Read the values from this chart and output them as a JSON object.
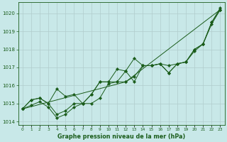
{
  "title": "Graphe pression niveau de la mer (hPa)",
  "xlabel_hours": [
    0,
    1,
    2,
    3,
    4,
    5,
    6,
    7,
    8,
    9,
    10,
    11,
    12,
    13,
    14,
    15,
    16,
    17,
    18,
    19,
    20,
    21,
    22,
    23
  ],
  "ylim": [
    1013.8,
    1020.6
  ],
  "yticks": [
    1014,
    1015,
    1016,
    1017,
    1018,
    1019,
    1020
  ],
  "bg_color": "#c8e8e8",
  "grid_color": "#b0cccc",
  "line_color": "#1a5c1a",
  "series": [
    [
      1014.7,
      1014.9,
      1015.1,
      1014.8,
      1014.2,
      1014.4,
      1014.8,
      1015.0,
      1015.0,
      1015.3,
      1016.1,
      1016.2,
      1016.2,
      1016.5,
      1017.1,
      1017.1,
      1017.2,
      1016.7,
      1017.2,
      1017.3,
      1018.0,
      1018.3,
      1019.4,
      1020.2
    ],
    [
      1014.7,
      1015.2,
      1015.3,
      1015.0,
      1014.4,
      1014.6,
      1015.0,
      1015.0,
      1015.5,
      1016.2,
      1016.2,
      1016.9,
      1016.8,
      1017.5,
      1017.1,
      1017.1,
      1017.2,
      1017.1,
      1017.2,
      1017.3,
      1017.9,
      1018.3,
      1019.5,
      1020.3
    ],
    [
      1014.7,
      1015.2,
      1015.3,
      1015.0,
      1015.8,
      1015.4,
      1015.5,
      1015.0,
      1015.5,
      1016.2,
      1016.2,
      1016.2,
      1016.8,
      1016.2,
      1017.1,
      1017.1,
      1017.2,
      1016.7,
      1017.2,
      1017.3,
      1018.0,
      1018.3,
      1019.5,
      1020.2
    ],
    [
      1014.7,
      null,
      null,
      null,
      null,
      null,
      null,
      null,
      null,
      null,
      null,
      null,
      1016.2,
      null,
      null,
      null,
      null,
      null,
      null,
      null,
      null,
      null,
      null,
      1020.2
    ]
  ]
}
